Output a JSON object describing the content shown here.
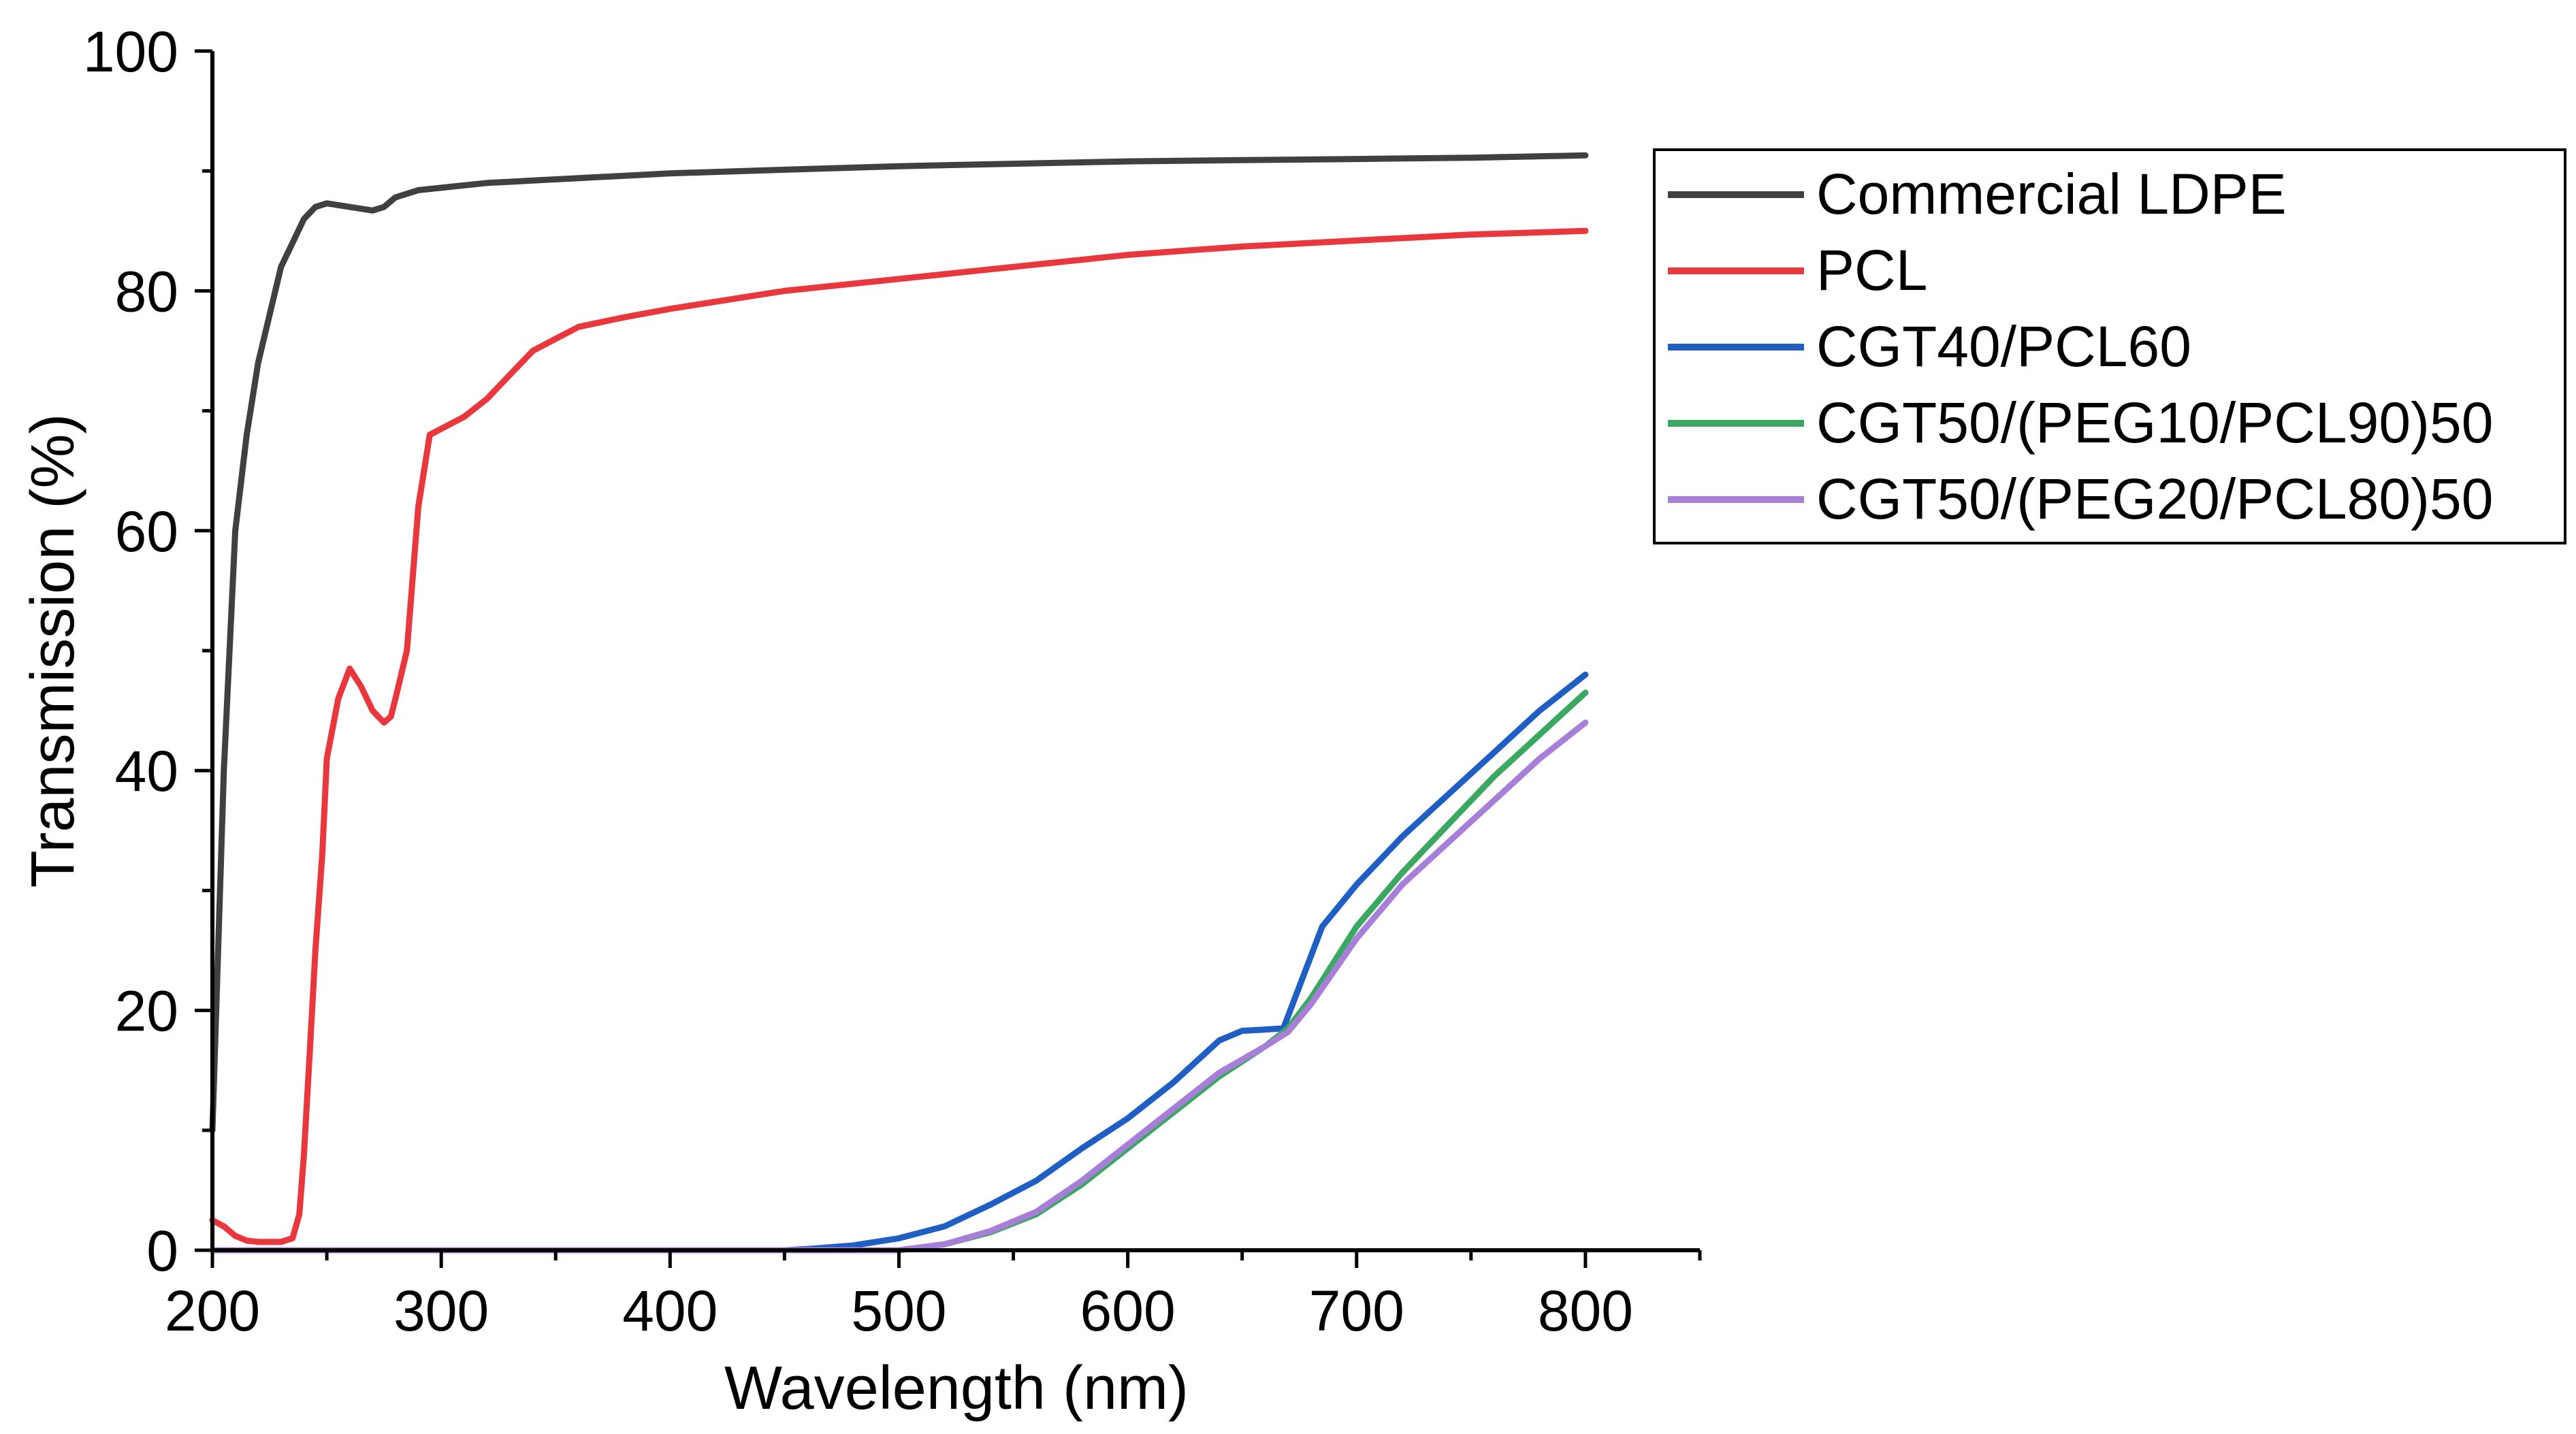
{
  "chart_data": {
    "type": "line",
    "title": "",
    "xlabel": "Wavelength (nm)",
    "ylabel": "Transmission (%)",
    "xlim": [
      200,
      850
    ],
    "ylim": [
      0,
      100
    ],
    "xticks": [
      200,
      300,
      400,
      500,
      600,
      700,
      800
    ],
    "xtick_labels": [
      "200",
      "300",
      "400",
      "500",
      "600",
      "700",
      "800"
    ],
    "yticks": [
      0,
      20,
      40,
      60,
      80,
      100
    ],
    "ytick_labels": [
      "0",
      "20",
      "40",
      "60",
      "80",
      "100"
    ],
    "legend_position": "top-right (outside plot)",
    "grid": false,
    "series": [
      {
        "name": "Commercial LDPE",
        "color": "#404040",
        "x": [
          200,
          205,
          210,
          215,
          220,
          225,
          230,
          235,
          240,
          245,
          250,
          260,
          270,
          275,
          280,
          290,
          300,
          320,
          340,
          360,
          400,
          450,
          500,
          550,
          600,
          650,
          700,
          750,
          800
        ],
        "y": [
          10,
          40,
          60,
          68,
          74,
          78,
          82,
          84,
          86,
          87,
          87.3,
          87,
          86.7,
          87,
          87.8,
          88.4,
          88.6,
          89,
          89.2,
          89.4,
          89.8,
          90.1,
          90.4,
          90.6,
          90.8,
          90.9,
          91.0,
          91.1,
          91.3
        ]
      },
      {
        "name": "PCL",
        "color": "#e8383d",
        "x": [
          200,
          205,
          210,
          215,
          220,
          225,
          230,
          235,
          238,
          240,
          243,
          245,
          248,
          250,
          255,
          260,
          265,
          270,
          275,
          278,
          280,
          285,
          290,
          295,
          300,
          310,
          320,
          330,
          340,
          350,
          360,
          380,
          400,
          450,
          500,
          550,
          600,
          650,
          700,
          750,
          800
        ],
        "y": [
          2.5,
          2,
          1.2,
          0.8,
          0.7,
          0.7,
          0.7,
          1,
          3,
          8,
          18,
          25,
          33,
          41,
          46,
          48.5,
          47,
          45,
          44,
          44.5,
          46,
          50,
          62,
          68,
          68.5,
          69.5,
          71,
          73,
          75,
          76,
          77,
          77.8,
          78.5,
          80,
          81,
          82,
          83,
          83.7,
          84.2,
          84.7,
          85
        ]
      },
      {
        "name": "CGT40/PCL60",
        "color": "#1f5fc4",
        "x": [
          200,
          450,
          460,
          480,
          500,
          520,
          540,
          560,
          580,
          600,
          620,
          640,
          650,
          660,
          668,
          675,
          685,
          700,
          720,
          740,
          760,
          780,
          800
        ],
        "y": [
          0,
          0,
          0.1,
          0.4,
          1,
          2,
          3.8,
          5.8,
          8.5,
          11,
          14,
          17.5,
          18.3,
          18.4,
          18.5,
          22,
          27,
          30.5,
          34.5,
          38,
          41.5,
          45,
          48
        ]
      },
      {
        "name": "CGT50/(PEG10/PCL90)50",
        "color": "#3aa860",
        "x": [
          200,
          500,
          520,
          540,
          560,
          580,
          600,
          620,
          640,
          660,
          670,
          680,
          700,
          720,
          740,
          760,
          780,
          800
        ],
        "y": [
          0,
          0,
          0.5,
          1.5,
          3,
          5.5,
          8.5,
          11.5,
          14.5,
          17,
          18.5,
          21,
          27,
          31.5,
          35.5,
          39.5,
          43,
          46.5
        ]
      },
      {
        "name": "CGT50/(PEG20/PCL80)50",
        "color": "#a87fd8",
        "x": [
          200,
          500,
          520,
          540,
          560,
          580,
          600,
          620,
          640,
          660,
          670,
          680,
          700,
          720,
          740,
          760,
          780,
          800
        ],
        "y": [
          0,
          0,
          0.5,
          1.6,
          3.2,
          5.8,
          8.8,
          11.8,
          14.8,
          17,
          18.2,
          20.5,
          26,
          30.5,
          34,
          37.5,
          41,
          44
        ]
      }
    ]
  }
}
